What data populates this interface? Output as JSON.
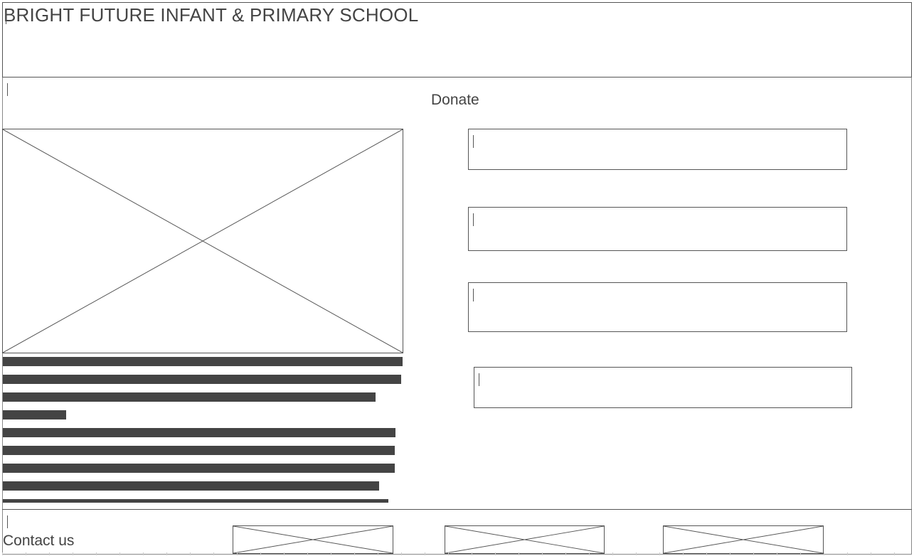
{
  "header": {
    "title": "BRIGHT FUTURE INFANT & PRIMARY SCHOOL"
  },
  "main": {
    "heading": "Donate"
  },
  "text_block": {
    "line_count": 9
  },
  "form": {
    "fields": [
      {
        "name": "field-1",
        "value": ""
      },
      {
        "name": "field-2",
        "value": ""
      },
      {
        "name": "field-3",
        "value": ""
      },
      {
        "name": "field-4",
        "value": ""
      }
    ]
  },
  "footer": {
    "contact_label": "Contact us",
    "image_count": 3
  },
  "colors": {
    "wire": "#555555",
    "text": "#444444",
    "bar": "#444444"
  }
}
